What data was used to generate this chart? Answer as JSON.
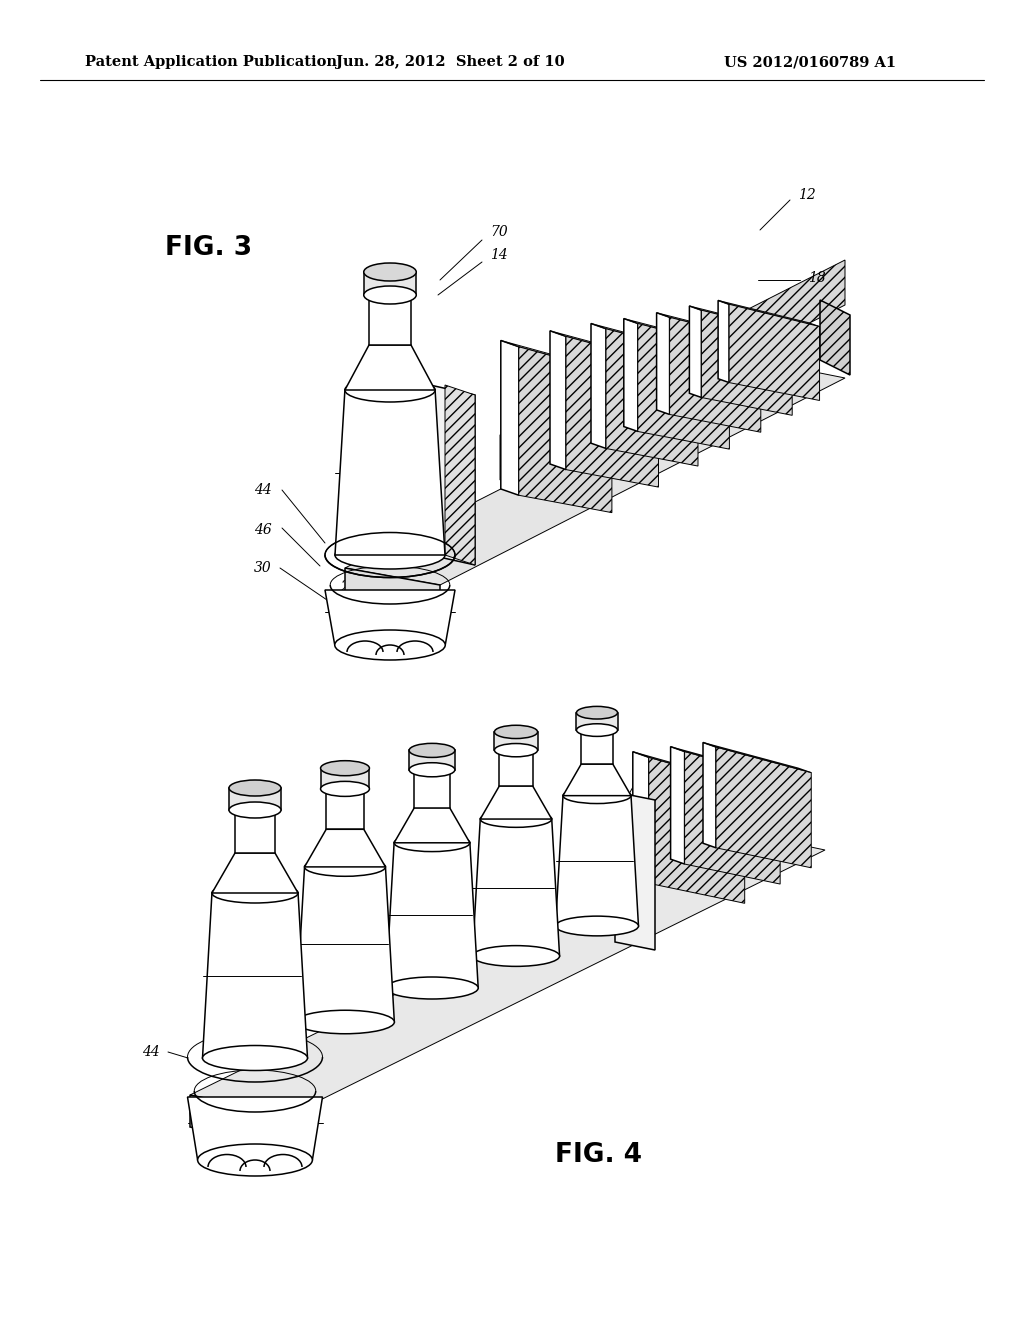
{
  "background_color": "#ffffff",
  "header_text_left": "Patent Application Publication",
  "header_text_mid": "Jun. 28, 2012  Sheet 2 of 10",
  "header_text_right": "US 2012/0160789 A1",
  "header_fontsize": 10.5,
  "fig3_label": "FIG. 3",
  "fig4_label": "FIG. 4",
  "fig_label_fontsize": 19,
  "annotation_fontsize": 10,
  "line_color": "#000000",
  "lw_thin": 0.7,
  "lw_med": 1.1,
  "lw_thick": 1.5
}
